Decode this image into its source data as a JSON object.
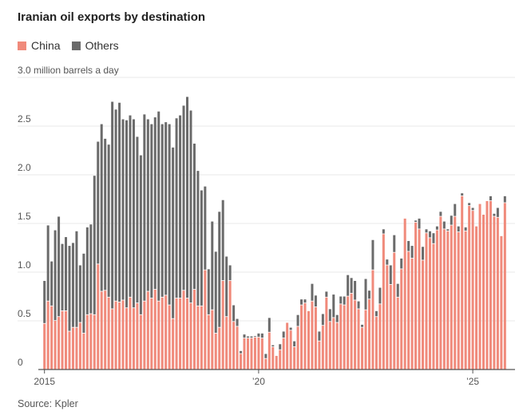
{
  "chart_data": {
    "type": "bar",
    "stacked": true,
    "title": "Iranian oil exports by destination",
    "ylabel": "3.0 million barrels a day",
    "xlabel": "",
    "source": "Source: Kpler",
    "ylim": [
      0,
      3.0
    ],
    "yticks": [
      {
        "value": 0,
        "label": "0"
      },
      {
        "value": 0.5,
        "label": "0.5"
      },
      {
        "value": 1.0,
        "label": "1.0"
      },
      {
        "value": 1.5,
        "label": "1.5"
      },
      {
        "value": 2.0,
        "label": "2.0"
      },
      {
        "value": 2.5,
        "label": "2.5"
      },
      {
        "value": 3.0,
        "label": "3.0 million barrels a day"
      }
    ],
    "xticks": [
      {
        "index": 0,
        "label": "2015"
      },
      {
        "index": 60,
        "label": "’20"
      },
      {
        "index": 120,
        "label": "’25"
      }
    ],
    "x_start": "2015-01",
    "x_frequency": "monthly",
    "grid": true,
    "legend_position": "top-left",
    "series": [
      {
        "name": "China",
        "color": "#f08a7b",
        "values": [
          0.47,
          0.7,
          0.65,
          0.5,
          0.54,
          0.6,
          0.6,
          0.39,
          0.43,
          0.43,
          0.48,
          0.37,
          0.56,
          0.57,
          0.56,
          1.08,
          0.8,
          0.81,
          0.74,
          0.62,
          0.7,
          0.69,
          0.71,
          0.63,
          0.74,
          0.63,
          0.68,
          0.56,
          0.7,
          0.8,
          0.73,
          0.82,
          0.7,
          0.74,
          0.76,
          0.66,
          0.52,
          0.73,
          0.73,
          0.81,
          0.73,
          0.68,
          0.82,
          0.65,
          0.65,
          1.02,
          0.56,
          0.61,
          0.37,
          0.43,
          0.91,
          0.54,
          0.91,
          0.49,
          0.44,
          0.16,
          0.32,
          0.32,
          0.32,
          0.33,
          0.33,
          0.32,
          0.11,
          0.38,
          0.23,
          0.14,
          0.2,
          0.32,
          0.48,
          0.4,
          0.23,
          0.44,
          0.66,
          0.68,
          0.6,
          0.7,
          0.64,
          0.29,
          0.45,
          0.74,
          0.49,
          0.53,
          0.48,
          0.67,
          0.66,
          0.75,
          0.78,
          0.71,
          0.62,
          0.43,
          0.61,
          0.72,
          1.02,
          0.54,
          0.67,
          1.39,
          1.07,
          0.87,
          1.2,
          0.74,
          1.03,
          1.55,
          1.21,
          1.14,
          1.51,
          1.44,
          1.12,
          1.4,
          1.35,
          1.29,
          1.43,
          1.57,
          1.44,
          1.42,
          1.48,
          1.57,
          1.41,
          1.78,
          1.42,
          1.68,
          1.63,
          1.47,
          1.7,
          1.59,
          1.73,
          1.73,
          1.57,
          1.56,
          1.37,
          1.71
        ]
      },
      {
        "name": "Others",
        "color": "#6b6b6b",
        "values": [
          0.44,
          0.78,
          0.46,
          0.93,
          1.03,
          0.69,
          0.76,
          0.88,
          0.87,
          0.99,
          0.59,
          0.82,
          0.9,
          0.92,
          1.43,
          1.26,
          1.72,
          1.56,
          1.57,
          2.13,
          1.97,
          2.05,
          1.86,
          1.93,
          1.87,
          1.94,
          1.71,
          1.64,
          1.92,
          1.77,
          1.79,
          1.77,
          1.95,
          1.78,
          1.78,
          1.86,
          1.76,
          1.85,
          1.88,
          1.9,
          2.07,
          1.98,
          1.5,
          1.39,
          1.19,
          0.86,
          0.47,
          0.91,
          0.84,
          1.19,
          0.83,
          0.62,
          0.16,
          0.17,
          0.08,
          0.03,
          0.04,
          0.02,
          0.02,
          0.01,
          0.04,
          0.05,
          0.05,
          0.15,
          0.02,
          0.0,
          0.06,
          0.07,
          0.0,
          0.03,
          0.06,
          0.12,
          0.06,
          0.04,
          0.0,
          0.18,
          0.12,
          0.1,
          0.12,
          0.06,
          0.13,
          0.24,
          0.08,
          0.08,
          0.09,
          0.22,
          0.16,
          0.2,
          0.08,
          0.03,
          0.32,
          0.09,
          0.31,
          0.06,
          0.17,
          0.05,
          0.06,
          0.2,
          0.18,
          0.14,
          0.11,
          0.0,
          0.11,
          0.13,
          0.02,
          0.11,
          0.14,
          0.04,
          0.07,
          0.11,
          0.04,
          0.05,
          0.08,
          0.02,
          0.1,
          0.13,
          0.06,
          0.03,
          0.04,
          0.03,
          0.03,
          0.0,
          0.0,
          0.0,
          0.0,
          0.05,
          0.03,
          0.1,
          0.0,
          0.07
        ]
      }
    ]
  }
}
